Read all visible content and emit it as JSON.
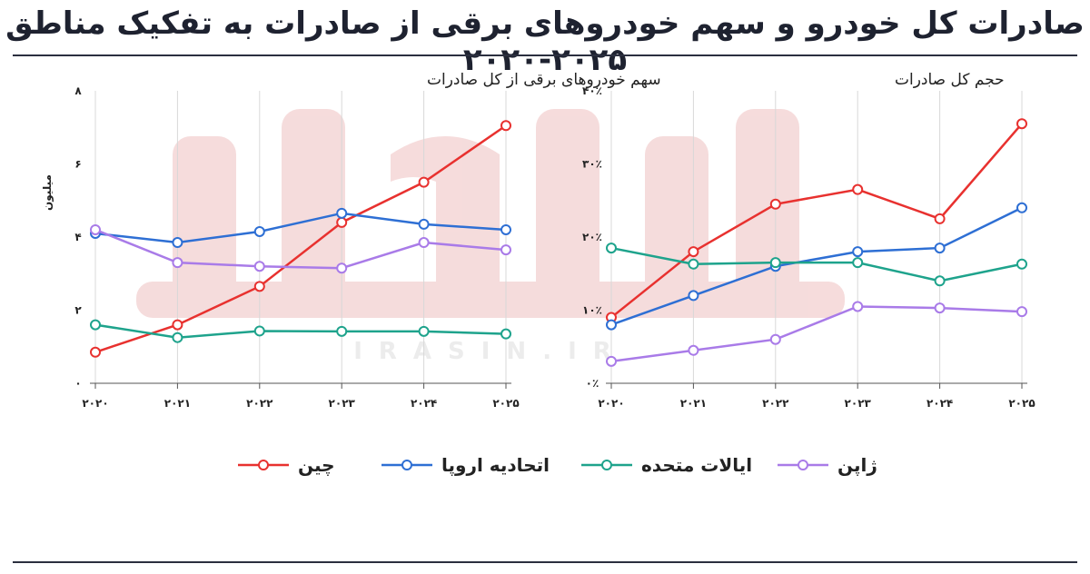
{
  "title": "صادرات کل خودرو و سهم خودروهای برقی از صادرات به تفکیک مناطق ۲۰۲۵-۲۰۲۰",
  "watermark": "IRASIN.IR",
  "colors": {
    "china": "#e8312f",
    "eu": "#2e6fd4",
    "us": "#1ea38c",
    "japan": "#a97be8",
    "grid": "#d8d8d8",
    "axis": "#555555"
  },
  "legend": [
    {
      "key": "china",
      "label": "چین"
    },
    {
      "key": "eu",
      "label": "اتحادیه اروپا"
    },
    {
      "key": "us",
      "label": "ایالات متحده"
    },
    {
      "key": "japan",
      "label": "ژاپن"
    }
  ],
  "chart_data": [
    {
      "type": "line",
      "title": "سهم خودروهای برقی از کل صادرات",
      "ylabel": "میلیون",
      "x": [
        "۲۰۲۰",
        "۲۰۲۱",
        "۲۰۲۲",
        "۲۰۲۳",
        "۲۰۲۴",
        "۲۰۲۵"
      ],
      "yticks": [
        0,
        2,
        4,
        6,
        8
      ],
      "ytick_labels": [
        "۰",
        "۲",
        "۴",
        "۶",
        "۸"
      ],
      "ylim": [
        0,
        8
      ],
      "grid": "vertical",
      "series": [
        {
          "key": "china",
          "name": "چین",
          "values": [
            0.85,
            1.6,
            2.65,
            4.4,
            5.5,
            7.05
          ]
        },
        {
          "key": "eu",
          "name": "اتحادیه اروپا",
          "values": [
            4.1,
            3.85,
            4.15,
            4.65,
            4.35,
            4.2
          ]
        },
        {
          "key": "us",
          "name": "ایالات متحده",
          "values": [
            1.6,
            1.25,
            1.43,
            1.42,
            1.42,
            1.35
          ]
        },
        {
          "key": "japan",
          "name": "ژاپن",
          "values": [
            4.2,
            3.3,
            3.2,
            3.15,
            3.85,
            3.65
          ]
        }
      ]
    },
    {
      "type": "line",
      "title": "حجم کل صادرات",
      "x": [
        "۲۰۲۰",
        "۲۰۲۱",
        "۲۰۲۲",
        "۲۰۲۳",
        "۲۰۲۴",
        "۲۰۲۵"
      ],
      "yticks": [
        0,
        10,
        20,
        30,
        40
      ],
      "ytick_labels": [
        "۰٪",
        "۱۰٪",
        "۲۰٪",
        "۳۰٪",
        "۴۰٪"
      ],
      "ylim": [
        0,
        40
      ],
      "grid": "vertical",
      "series": [
        {
          "key": "china",
          "name": "چین",
          "values": [
            9.0,
            18.0,
            24.5,
            26.5,
            22.5,
            35.5
          ]
        },
        {
          "key": "eu",
          "name": "اتحادیه اروپا",
          "values": [
            8.0,
            12.0,
            16.0,
            18.0,
            18.5,
            24.0
          ]
        },
        {
          "key": "us",
          "name": "ایالات متحده",
          "values": [
            18.5,
            16.3,
            16.5,
            16.5,
            14.0,
            16.3
          ]
        },
        {
          "key": "japan",
          "name": "ژاپن",
          "values": [
            3.0,
            4.5,
            6.0,
            10.5,
            10.3,
            9.8
          ]
        }
      ]
    }
  ]
}
